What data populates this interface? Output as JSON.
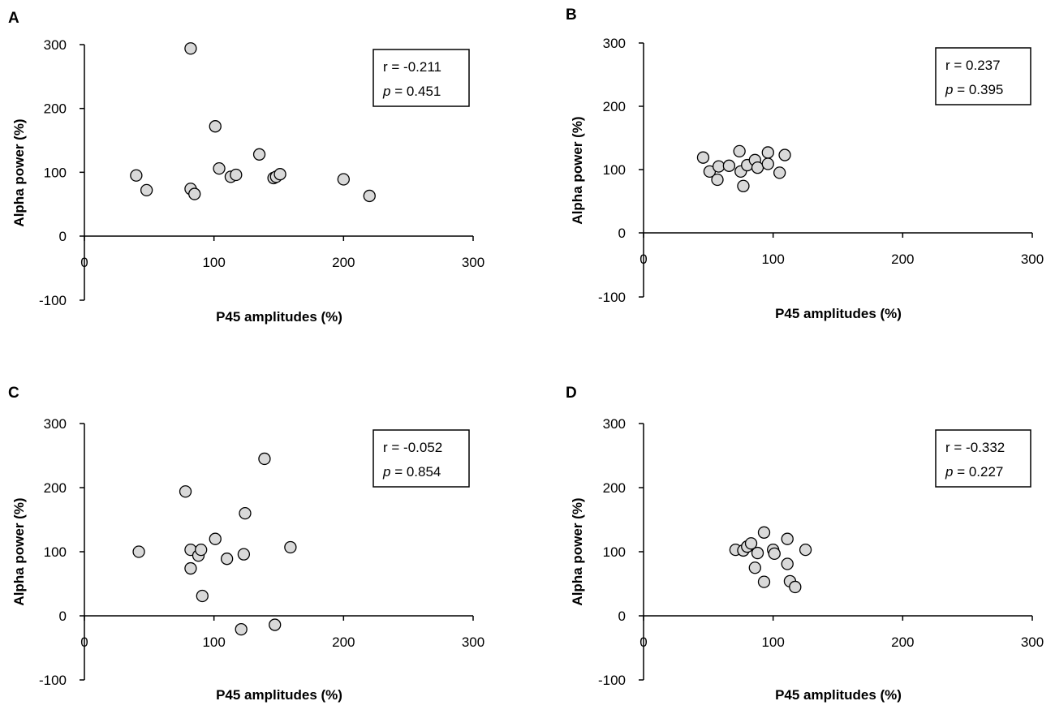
{
  "chart_data": [
    {
      "panel": "A",
      "type": "scatter",
      "xlabel": "P45 amplitudes (%)",
      "ylabel": "Alpha power (%)",
      "xlim": [
        0,
        300
      ],
      "ylim": [
        -100,
        300
      ],
      "xticks": [
        "0",
        "100",
        "200",
        "300"
      ],
      "yticks": [
        "300",
        "200",
        "100",
        "0",
        "-100"
      ],
      "stats": {
        "r_text": "r = -0.211",
        "p_label": "p",
        "p_value": " = 0.451"
      },
      "points": [
        [
          40,
          95
        ],
        [
          48,
          72
        ],
        [
          82,
          294
        ],
        [
          82,
          74
        ],
        [
          85,
          66
        ],
        [
          101,
          172
        ],
        [
          104,
          106
        ],
        [
          113,
          93
        ],
        [
          117,
          96
        ],
        [
          135,
          128
        ],
        [
          146,
          91
        ],
        [
          148,
          93
        ],
        [
          151,
          97
        ],
        [
          200,
          89
        ],
        [
          220,
          63
        ]
      ]
    },
    {
      "panel": "B",
      "type": "scatter",
      "xlabel": "P45 amplitudes (%)",
      "ylabel": "Alpha power (%)",
      "xlim": [
        0,
        300
      ],
      "ylim": [
        -100,
        300
      ],
      "xticks": [
        "0",
        "100",
        "200",
        "300"
      ],
      "yticks": [
        "300",
        "200",
        "100",
        "0",
        "-100"
      ],
      "stats": {
        "r_text": "r = 0.237",
        "p_label": "p",
        "p_value": " = 0.395"
      },
      "points": [
        [
          46,
          119
        ],
        [
          51,
          97
        ],
        [
          57,
          84
        ],
        [
          58,
          105
        ],
        [
          66,
          106
        ],
        [
          74,
          129
        ],
        [
          75,
          97
        ],
        [
          77,
          74
        ],
        [
          80,
          107
        ],
        [
          86,
          115
        ],
        [
          88,
          103
        ],
        [
          96,
          127
        ],
        [
          96,
          109
        ],
        [
          105,
          95
        ],
        [
          109,
          123
        ]
      ]
    },
    {
      "panel": "C",
      "type": "scatter",
      "xlabel": "P45 amplitudes (%)",
      "ylabel": "Alpha power (%)",
      "xlim": [
        0,
        300
      ],
      "ylim": [
        -100,
        300
      ],
      "xticks": [
        "0",
        "100",
        "200",
        "300"
      ],
      "yticks": [
        "300",
        "200",
        "100",
        "0",
        "-100"
      ],
      "stats": {
        "r_text": "r = -0.052",
        "p_label": "p",
        "p_value": " = 0.854"
      },
      "points": [
        [
          42,
          100
        ],
        [
          78,
          194
        ],
        [
          82,
          74
        ],
        [
          82,
          103
        ],
        [
          88,
          94
        ],
        [
          90,
          103
        ],
        [
          91,
          31
        ],
        [
          101,
          120
        ],
        [
          110,
          89
        ],
        [
          121,
          -21
        ],
        [
          123,
          96
        ],
        [
          124,
          160
        ],
        [
          139,
          245
        ],
        [
          147,
          -14
        ],
        [
          159,
          107
        ]
      ]
    },
    {
      "panel": "D",
      "type": "scatter",
      "xlabel": "P45 amplitudes (%)",
      "ylabel": "Alpha power (%)",
      "xlim": [
        0,
        300
      ],
      "ylim": [
        -100,
        300
      ],
      "xticks": [
        "0",
        "100",
        "200",
        "300"
      ],
      "yticks": [
        "300",
        "200",
        "100",
        "0",
        "-100"
      ],
      "stats": {
        "r_text": "r = -0.332",
        "p_label": "p",
        "p_value": " = 0.227"
      },
      "points": [
        [
          71,
          103
        ],
        [
          77,
          102
        ],
        [
          80,
          108
        ],
        [
          83,
          113
        ],
        [
          86,
          75
        ],
        [
          88,
          98
        ],
        [
          93,
          53
        ],
        [
          93,
          130
        ],
        [
          100,
          103
        ],
        [
          101,
          97
        ],
        [
          111,
          120
        ],
        [
          111,
          81
        ],
        [
          113,
          54
        ],
        [
          117,
          45
        ],
        [
          125,
          103
        ]
      ]
    }
  ]
}
